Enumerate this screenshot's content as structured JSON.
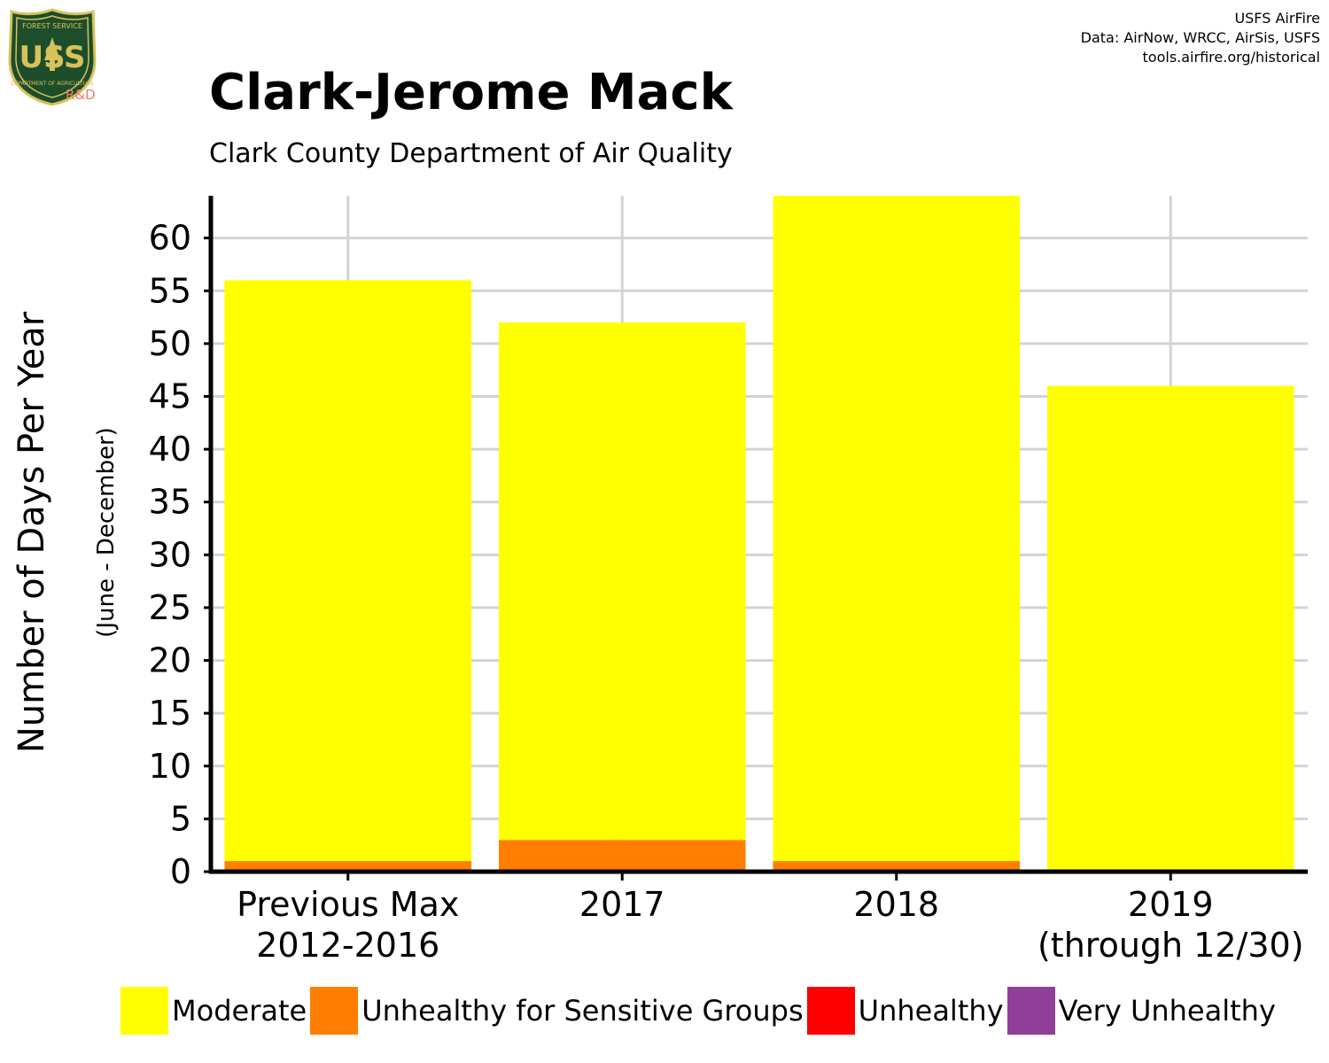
{
  "header": {
    "credits": [
      "USFS AirFire",
      "Data: AirNow, WRCC, AirSis, USFS",
      "tools.airfire.org/historical"
    ],
    "logo_text": {
      "top": "FOREST SERVICE",
      "center": "USS",
      "bottom": "DEPARTMENT OF AGRICULTURE",
      "badge": "R&D"
    }
  },
  "chart_data": {
    "type": "bar",
    "stacked": true,
    "title": "Clark-Jerome Mack",
    "subtitle": "Clark County Department of Air Quality",
    "ylabel": "Number of Days Per Year",
    "ylabel_sub": "(June - December)",
    "xlabel": "",
    "categories": [
      [
        "Previous Max",
        "2012-2016"
      ],
      [
        "2017"
      ],
      [
        "2018"
      ],
      [
        "2019",
        "(through 12/30)"
      ]
    ],
    "series": [
      {
        "name": "Unhealthy for Sensitive Groups",
        "color": "#FF7E00",
        "values": [
          1,
          3,
          1,
          0
        ]
      },
      {
        "name": "Moderate",
        "color": "#FFFF00",
        "values": [
          55,
          49,
          63,
          46
        ]
      },
      {
        "name": "Unhealthy",
        "color": "#FF0000",
        "values": [
          0,
          0,
          0,
          0
        ]
      },
      {
        "name": "Very Unhealthy",
        "color": "#8F3F97",
        "values": [
          0,
          0,
          0,
          0
        ]
      }
    ],
    "ylim": [
      0,
      64
    ],
    "yticks": [
      0,
      5,
      10,
      15,
      20,
      25,
      30,
      35,
      40,
      45,
      50,
      55,
      60
    ],
    "grid": true,
    "legend_position": "bottom",
    "legend": [
      {
        "name": "Moderate",
        "color": "#FFFF00"
      },
      {
        "name": "Unhealthy for Sensitive Groups",
        "color": "#FF7E00"
      },
      {
        "name": "Unhealthy",
        "color": "#FF0000"
      },
      {
        "name": "Very Unhealthy",
        "color": "#8F3F97"
      }
    ]
  }
}
